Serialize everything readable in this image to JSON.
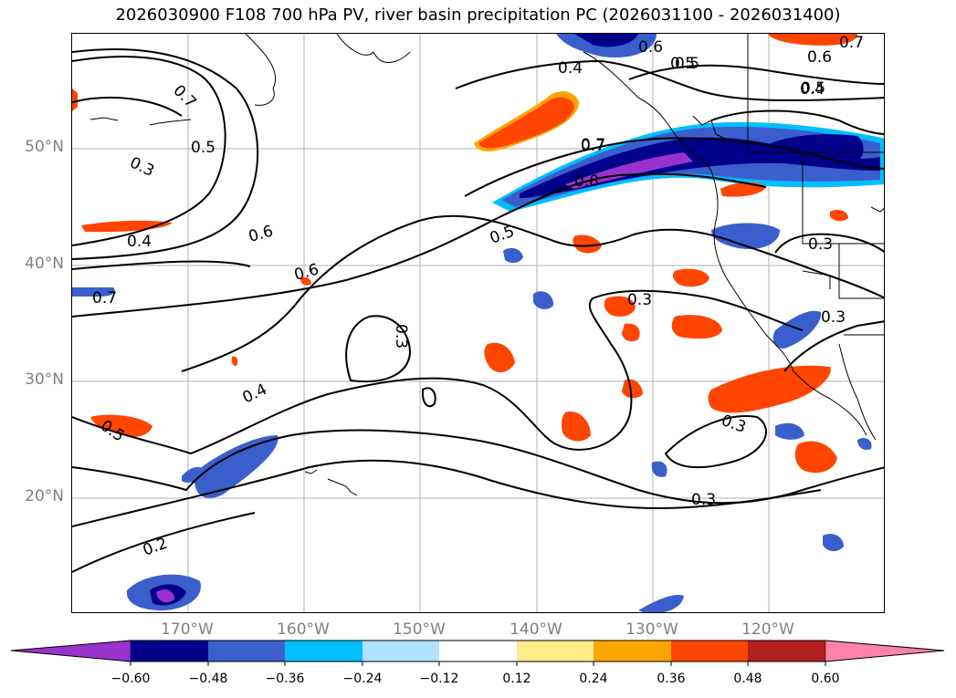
{
  "title": "2026030900 F108 700 hPa PV, river basin precipitation PC (2026031100 - 2026031400)",
  "map": {
    "lon_range": [
      -180,
      -110
    ],
    "lat_range": [
      10,
      60
    ],
    "lat_labels": [
      "50°N",
      "40°N",
      "30°N",
      "20°N"
    ],
    "lon_labels": [
      "170°W",
      "160°W",
      "150°W",
      "140°W",
      "130°W",
      "120°W"
    ],
    "contour_labels": [
      "0.7",
      "0.5",
      "0.3",
      "0.4",
      "0.6",
      "0.7",
      "0.6",
      "0.5",
      "0.6",
      "0.7",
      "0.4",
      "0.5",
      "0.6",
      "0.5",
      "0.7",
      "0.4",
      "0.7",
      "0.8",
      "0.5",
      "0.3",
      "0.3",
      "0.3",
      "0.4",
      "0.5",
      "0.3",
      "0.4",
      "0.3",
      "0.2",
      "0.3"
    ]
  },
  "colorbar": {
    "ticks": [
      "−0.60",
      "−0.48",
      "−0.36",
      "−0.24",
      "−0.12",
      "0.12",
      "0.24",
      "0.36",
      "0.48",
      "0.60"
    ],
    "colors": [
      "#9a32cd",
      "#00008b",
      "#3a5fcd",
      "#00bfff",
      "#b0e2ff",
      "#ffffff",
      "#ffec8b",
      "#ffa500",
      "#ff4500",
      "#b22222",
      "#ff82ab",
      "#ff82ab"
    ]
  }
}
